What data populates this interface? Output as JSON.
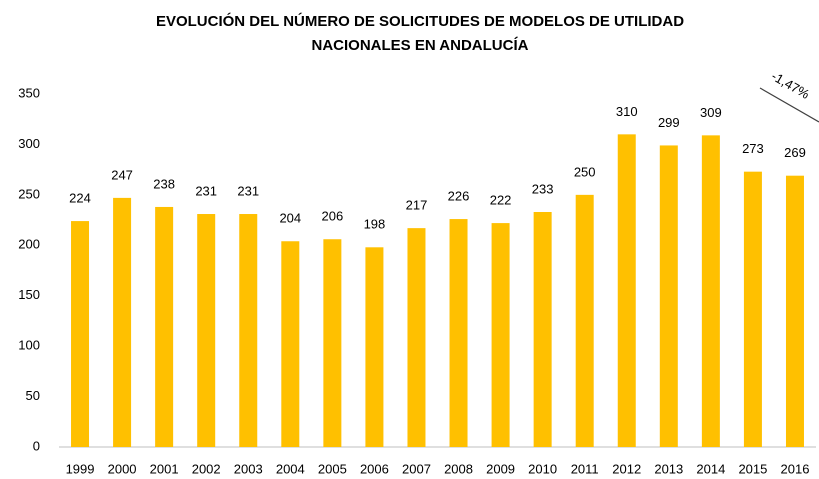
{
  "chart_data": {
    "type": "bar",
    "title": [
      "EVOLUCIÓN DEL NÚMERO DE SOLICITUDES DE MODELOS DE UTILIDAD",
      "NACIONALES EN ANDALUCÍA"
    ],
    "categories": [
      "1999",
      "2000",
      "2001",
      "2002",
      "2003",
      "2004",
      "2005",
      "2006",
      "2007",
      "2008",
      "2009",
      "2010",
      "2011",
      "2012",
      "2013",
      "2014",
      "2015",
      "2016"
    ],
    "values": [
      224,
      247,
      238,
      231,
      231,
      204,
      206,
      198,
      217,
      226,
      222,
      233,
      250,
      310,
      299,
      309,
      273,
      269
    ],
    "color": "#ffc000",
    "ylim": [
      0,
      350
    ],
    "yticks": [
      0,
      50,
      100,
      150,
      200,
      250,
      300,
      350
    ],
    "grid": false,
    "annotation": "-1,47%"
  }
}
